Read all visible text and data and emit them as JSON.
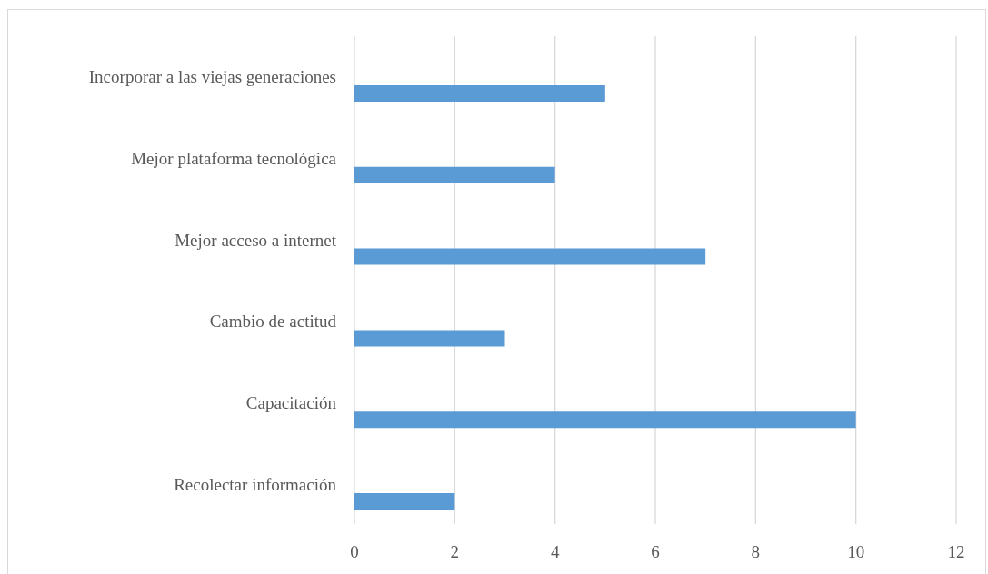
{
  "chart_data": {
    "type": "bar",
    "orientation": "horizontal",
    "categories": [
      "Incorporar a las viejas generaciones",
      "Mejor plataforma tecnológica",
      "Mejor acceso a internet",
      "Cambio de actitud",
      "Capacitación",
      "Recolectar información"
    ],
    "values": [
      5,
      4,
      7,
      3,
      10,
      2
    ],
    "color": "#5b9bd5",
    "xlim": [
      0,
      12
    ],
    "xticks": [
      0,
      2,
      4,
      6,
      8,
      10,
      12
    ],
    "grid": "x"
  }
}
